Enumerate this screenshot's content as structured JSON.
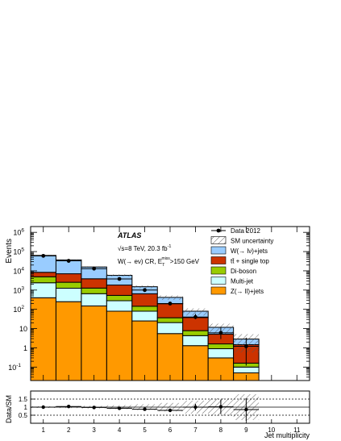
{
  "chart_data": [
    {
      "type": "bar",
      "stacked": true,
      "log_y": true,
      "ylim": [
        0.02,
        2000000
      ],
      "xlim": [
        0.5,
        11.5
      ],
      "ylabel": "Events",
      "xlabel": "",
      "x_bins": [
        1,
        2,
        3,
        4,
        5,
        6,
        7,
        8,
        9,
        10,
        11
      ],
      "x_tick_labels": [
        "1",
        "2",
        "3",
        "4",
        "5",
        "6",
        "7",
        "8",
        "9",
        "10",
        "11"
      ],
      "y_tick_labels": [
        {
          "value": 1000000,
          "label": "10",
          "exp": "6"
        },
        {
          "value": 100000,
          "label": "10",
          "exp": "5"
        },
        {
          "value": 10000,
          "label": "10",
          "exp": "4"
        },
        {
          "value": 1000,
          "label": "10",
          "exp": "3"
        },
        {
          "value": 100,
          "label": "10",
          "exp": "2"
        },
        {
          "value": 10,
          "label": "10",
          "exp": ""
        },
        {
          "value": 1,
          "label": "1",
          "exp": ""
        },
        {
          "value": 0.1,
          "label": "10",
          "exp": "-1"
        }
      ],
      "annotations": {
        "experiment": "ATLAS",
        "energy": "√s=8 TeV, 20.3 fb",
        "energy_sup": "-1",
        "region": "W(→ eν) CR, E",
        "region_sub": "T",
        "region_sup": "miss",
        "region_cut": ">150 GeV"
      },
      "legend_position": "top-right",
      "data_series": {
        "name": "Data 2012",
        "values": [
          60000,
          33000,
          13000,
          3800,
          1000,
          200,
          40,
          6,
          1.2,
          null,
          null
        ],
        "errors": [
          null,
          null,
          null,
          null,
          null,
          null,
          0.15,
          0.35,
          0.6,
          null,
          null
        ]
      },
      "uncertainty": {
        "name": "SM uncertainty"
      },
      "series": [
        {
          "name": "Z(→ ll)+jets",
          "color": "#ff9900",
          "values": [
            400,
            250,
            150,
            80,
            25,
            5.5,
            1.3,
            0.3,
            0.05,
            0,
            0
          ]
        },
        {
          "name": "Multi-jet",
          "color": "#ccffff",
          "values": [
            2000,
            1000,
            500,
            200,
            55,
            15,
            3,
            0.6,
            0.05,
            0,
            0
          ]
        },
        {
          "name": "Di-boson",
          "color": "#99cc00",
          "values": [
            2500,
            1300,
            620,
            250,
            65,
            16,
            3.5,
            0.7,
            0.06,
            0,
            0
          ]
        },
        {
          "name": "tt̄ + single top",
          "color": "#cc3300",
          "values": [
            3500,
            4500,
            2600,
            1300,
            500,
            160,
            30,
            3.5,
            1.3,
            0,
            0
          ]
        },
        {
          "name": "W(→ lν)+jets",
          "color": "#99ccff",
          "values": [
            55000,
            30000,
            12000,
            4000,
            850,
            220,
            42,
            6.5,
            1.4,
            0,
            0
          ]
        }
      ]
    },
    {
      "type": "scatter",
      "ylabel": "Data/SM",
      "xlabel": "Jet multiplicity",
      "ylim": [
        0,
        2
      ],
      "y_tick_labels": [
        "1.5",
        "1",
        "0.5"
      ],
      "reference_lines": [
        0.5,
        1,
        1.5
      ],
      "x": [
        1,
        2,
        3,
        4,
        5,
        6,
        7,
        8,
        9
      ],
      "ratio": [
        1.0,
        1.04,
        0.98,
        0.93,
        0.87,
        0.8,
        1.0,
        1.02,
        0.85
      ],
      "ratio_errors": [
        0.02,
        0.02,
        0.02,
        0.03,
        0.04,
        0.06,
        0.2,
        0.45,
        0.7
      ],
      "uncertainty_band": [
        0.05,
        0.06,
        0.08,
        0.12,
        0.18,
        0.26,
        0.4,
        0.55,
        0.8
      ]
    }
  ]
}
